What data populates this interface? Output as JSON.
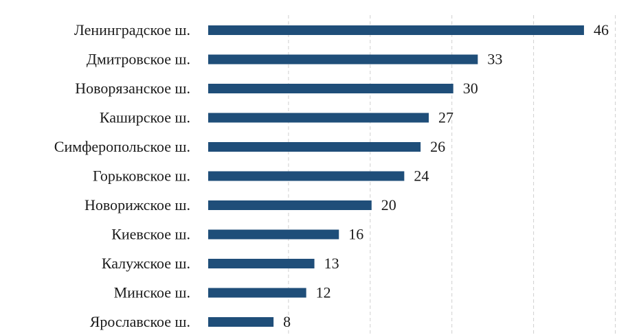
{
  "chart_data": {
    "type": "bar",
    "orientation": "horizontal",
    "categories": [
      "Ленинградское ш.",
      "Дмитровское ш.",
      "Новорязанское ш.",
      "Каширское ш.",
      "Симферопольское ш.",
      "Горьковское ш.",
      "Новорижское ш.",
      "Киевское ш.",
      "Калужское ш.",
      "Минское ш.",
      "Ярославское ш."
    ],
    "values": [
      46,
      33,
      30,
      27,
      26,
      24,
      20,
      16,
      13,
      12,
      8
    ],
    "value_labels": [
      "46",
      "33",
      "30",
      "27",
      "26",
      "24",
      "20",
      "16",
      "13",
      "12",
      "8"
    ],
    "xlim": [
      0,
      50
    ],
    "grid": true,
    "bar_color": "#1f4e79"
  }
}
